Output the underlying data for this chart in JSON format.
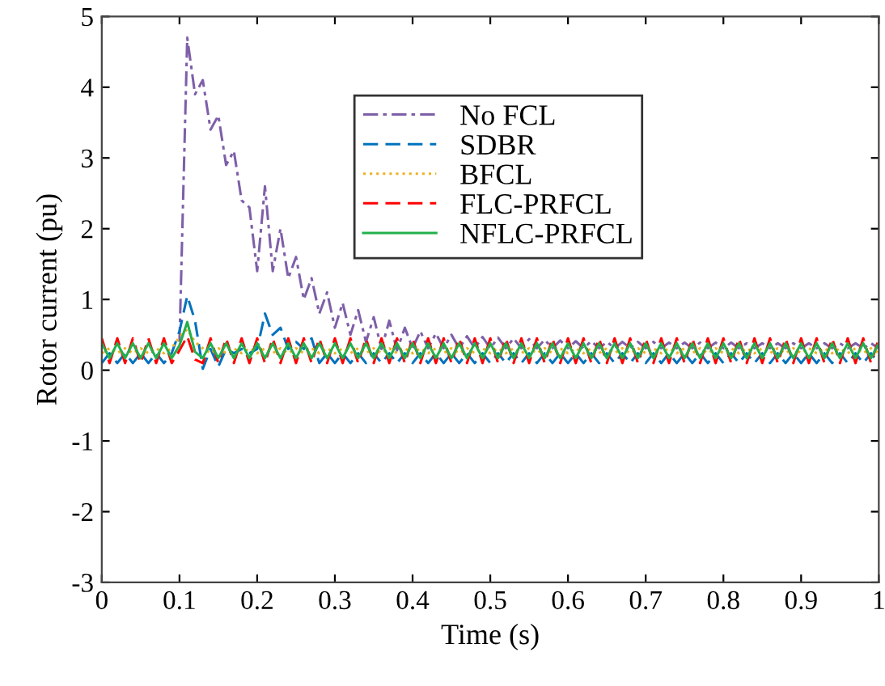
{
  "chart_data": {
    "type": "line",
    "xlabel": "Time (s)",
    "ylabel": "Rotor current (pu)",
    "xlim": [
      0,
      1
    ],
    "ylim": [
      -3,
      5
    ],
    "xticks": [
      0,
      0.1,
      0.2,
      0.3,
      0.4,
      0.5,
      0.6,
      0.7,
      0.8,
      0.9,
      1
    ],
    "yticks": [
      -3,
      -2,
      -1,
      0,
      1,
      2,
      3,
      4,
      5
    ],
    "grid": false,
    "legend": "top",
    "marker": "none",
    "x": [
      0,
      0.01,
      0.02,
      0.03,
      0.04,
      0.05,
      0.06,
      0.07,
      0.08,
      0.09,
      0.1,
      0.11,
      0.12,
      0.13,
      0.14,
      0.15,
      0.16,
      0.17,
      0.18,
      0.19,
      0.2,
      0.21,
      0.22,
      0.23,
      0.24,
      0.25,
      0.26,
      0.27,
      0.28,
      0.29,
      0.3,
      0.31,
      0.32,
      0.33,
      0.34,
      0.35,
      0.36,
      0.37,
      0.38,
      0.39,
      0.4,
      0.41,
      0.42,
      0.43,
      0.44,
      0.45,
      0.46,
      0.47,
      0.48,
      0.49,
      0.5,
      0.51,
      0.52,
      0.53,
      0.54,
      0.55,
      0.56,
      0.57,
      0.58,
      0.59,
      0.6,
      0.61,
      0.62,
      0.63,
      0.64,
      0.65,
      0.66,
      0.67,
      0.68,
      0.69,
      0.7,
      0.71,
      0.72,
      0.73,
      0.74,
      0.75,
      0.76,
      0.77,
      0.78,
      0.79,
      0.8,
      0.81,
      0.82,
      0.83,
      0.84,
      0.85,
      0.86,
      0.87,
      0.88,
      0.89,
      0.9,
      0.91,
      0.92,
      0.93,
      0.94,
      0.95,
      0.96,
      0.97,
      0.98,
      0.99,
      1
    ],
    "series": [
      {
        "name": "No FCL",
        "color": "#7e5fa8",
        "line_style": "dashdot",
        "values": [
          null,
          null,
          null,
          null,
          null,
          null,
          null,
          null,
          null,
          null,
          0.4,
          4.7,
          3.9,
          4.1,
          3.4,
          3.6,
          2.9,
          3.1,
          2.4,
          2.3,
          1.4,
          2.6,
          1.4,
          2.0,
          1.3,
          1.6,
          1.0,
          1.3,
          0.8,
          1.1,
          0.6,
          0.95,
          0.5,
          0.85,
          0.4,
          0.75,
          0.3,
          0.7,
          0.28,
          0.6,
          0.31,
          0.55,
          0.31,
          0.52,
          0.31,
          0.5,
          0.31,
          0.48,
          0.31,
          0.47,
          0.31,
          0.46,
          0.31,
          0.45,
          0.31,
          0.44,
          0.31,
          0.43,
          0.31,
          0.42,
          0.31,
          0.41,
          0.31,
          0.41,
          0.31,
          0.4,
          0.31,
          0.4,
          0.31,
          0.4,
          0.31,
          0.4,
          0.31,
          0.39,
          0.31,
          0.39,
          0.31,
          0.39,
          0.31,
          0.39,
          0.31,
          0.39,
          0.31,
          0.38,
          0.31,
          0.38,
          0.31,
          0.38,
          0.31,
          0.38,
          0.31,
          0.38,
          0.31,
          0.38,
          0.31,
          0.38,
          0.31,
          0.38,
          0.31,
          0.38,
          0.31
        ]
      },
      {
        "name": "SDBR",
        "color": "#0072bd",
        "line_style": "dashed",
        "values": [
          0.1,
          0.24,
          0.1,
          0.24,
          0.1,
          0.24,
          0.1,
          0.24,
          0.1,
          0.24,
          0.55,
          1.05,
          0.7,
          0.02,
          0.3,
          0.05,
          0.3,
          0.24,
          0.3,
          0.24,
          0.3,
          0.8,
          0.5,
          0.6,
          0.3,
          0.4,
          0.3,
          0.45,
          0.1,
          0.24,
          0.1,
          0.24,
          0.1,
          0.24,
          0.1,
          0.24,
          0.1,
          0.24,
          0.1,
          0.24,
          0.1,
          0.24,
          0.1,
          0.24,
          0.1,
          0.24,
          0.1,
          0.24,
          0.1,
          0.24,
          0.1,
          0.24,
          0.1,
          0.24,
          0.1,
          0.24,
          0.1,
          0.24,
          0.1,
          0.24,
          0.1,
          0.24,
          0.1,
          0.24,
          0.1,
          0.24,
          0.1,
          0.24,
          0.1,
          0.24,
          0.1,
          0.24,
          0.1,
          0.24,
          0.1,
          0.24,
          0.1,
          0.24,
          0.1,
          0.24,
          0.1,
          0.24,
          0.1,
          0.24,
          0.1,
          0.24,
          0.1,
          0.24,
          0.1,
          0.24,
          0.1,
          0.24,
          0.1,
          0.24,
          0.1,
          0.24,
          0.1,
          0.24,
          0.1,
          0.24,
          0.1
        ]
      },
      {
        "name": "BFCL",
        "color": "#edb120",
        "line_style": "dotted",
        "values": [
          0.24,
          0.31,
          0.24,
          0.31,
          0.24,
          0.31,
          0.24,
          0.31,
          0.24,
          0.31,
          0.47,
          0.58,
          0.4,
          0.31,
          0.24,
          0.31,
          0.24,
          0.31,
          0.24,
          0.31,
          0.24,
          0.31,
          0.24,
          0.31,
          0.24,
          0.31,
          0.24,
          0.31,
          0.24,
          0.31,
          0.24,
          0.31,
          0.24,
          0.31,
          0.24,
          0.31,
          0.24,
          0.31,
          0.24,
          0.31,
          0.24,
          0.31,
          0.24,
          0.31,
          0.24,
          0.31,
          0.24,
          0.31,
          0.24,
          0.31,
          0.24,
          0.31,
          0.24,
          0.31,
          0.24,
          0.31,
          0.24,
          0.31,
          0.24,
          0.31,
          0.24,
          0.31,
          0.24,
          0.31,
          0.24,
          0.31,
          0.24,
          0.31,
          0.24,
          0.31,
          0.24,
          0.31,
          0.24,
          0.31,
          0.24,
          0.31,
          0.24,
          0.31,
          0.24,
          0.31,
          0.24,
          0.31,
          0.24,
          0.31,
          0.24,
          0.31,
          0.24,
          0.31,
          0.24,
          0.31,
          0.24,
          0.31,
          0.24,
          0.31,
          0.24,
          0.31,
          0.24,
          0.31,
          0.24,
          0.31,
          0.24
        ]
      },
      {
        "name": "FLC-PRFCL",
        "color": "#ff0000",
        "line_style": "dashed",
        "values": [
          0.45,
          0.1,
          0.45,
          0.1,
          0.45,
          0.1,
          0.45,
          0.1,
          0.45,
          0.1,
          0.28,
          0.48,
          0.15,
          0.1,
          0.45,
          0.1,
          0.45,
          0.1,
          0.45,
          0.1,
          0.45,
          0.1,
          0.45,
          0.1,
          0.45,
          0.1,
          0.45,
          0.1,
          0.45,
          0.1,
          0.45,
          0.1,
          0.45,
          0.1,
          0.45,
          0.1,
          0.45,
          0.1,
          0.45,
          0.1,
          0.45,
          0.1,
          0.45,
          0.1,
          0.45,
          0.1,
          0.45,
          0.1,
          0.45,
          0.1,
          0.45,
          0.1,
          0.45,
          0.1,
          0.45,
          0.1,
          0.45,
          0.1,
          0.45,
          0.1,
          0.45,
          0.1,
          0.45,
          0.1,
          0.45,
          0.1,
          0.45,
          0.1,
          0.45,
          0.1,
          0.45,
          0.1,
          0.45,
          0.1,
          0.45,
          0.1,
          0.45,
          0.1,
          0.45,
          0.1,
          0.45,
          0.1,
          0.45,
          0.1,
          0.45,
          0.1,
          0.45,
          0.1,
          0.45,
          0.1,
          0.45,
          0.1,
          0.45,
          0.1,
          0.45,
          0.1,
          0.45,
          0.1,
          0.45,
          0.1,
          0.45
        ]
      },
      {
        "name": "NFLC-PRFCL",
        "color": "#22b04c",
        "line_style": "solid",
        "values": [
          0.38,
          0.17,
          0.38,
          0.17,
          0.38,
          0.17,
          0.38,
          0.17,
          0.38,
          0.17,
          0.35,
          0.68,
          0.26,
          0.17,
          0.38,
          0.17,
          0.38,
          0.17,
          0.38,
          0.17,
          0.38,
          0.17,
          0.38,
          0.17,
          0.38,
          0.17,
          0.38,
          0.17,
          0.38,
          0.17,
          0.38,
          0.17,
          0.38,
          0.17,
          0.38,
          0.17,
          0.38,
          0.17,
          0.38,
          0.17,
          0.38,
          0.17,
          0.38,
          0.17,
          0.38,
          0.17,
          0.38,
          0.17,
          0.38,
          0.17,
          0.38,
          0.17,
          0.38,
          0.17,
          0.38,
          0.17,
          0.38,
          0.17,
          0.38,
          0.17,
          0.38,
          0.17,
          0.38,
          0.17,
          0.38,
          0.17,
          0.38,
          0.17,
          0.38,
          0.17,
          0.38,
          0.17,
          0.38,
          0.17,
          0.38,
          0.17,
          0.38,
          0.17,
          0.38,
          0.17,
          0.38,
          0.17,
          0.38,
          0.17,
          0.38,
          0.17,
          0.38,
          0.17,
          0.38,
          0.17,
          0.38,
          0.17,
          0.38,
          0.17,
          0.38,
          0.17,
          0.38,
          0.17,
          0.38,
          0.17,
          0.38
        ]
      }
    ]
  }
}
